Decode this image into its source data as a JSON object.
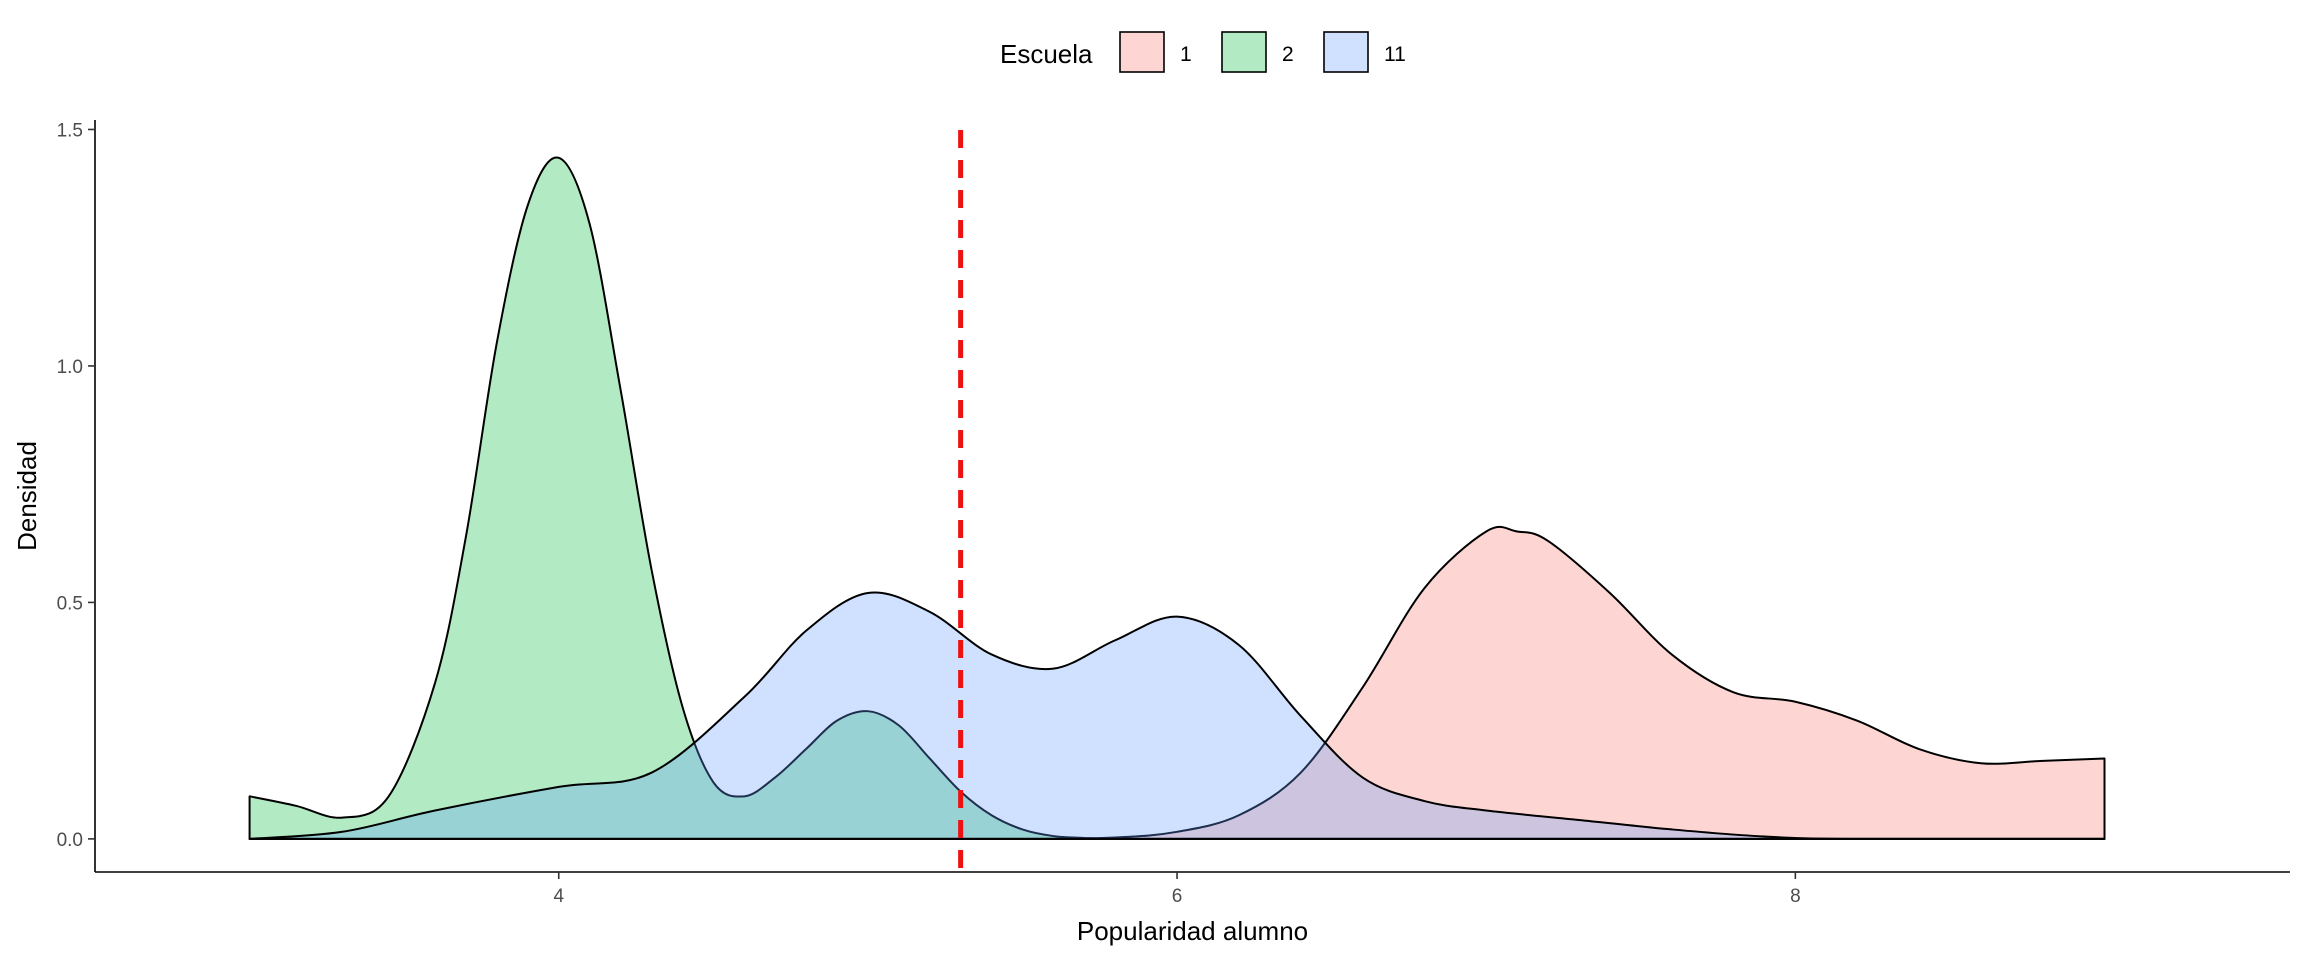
{
  "chart_data": {
    "type": "area",
    "subtype": "density",
    "title": "",
    "xlabel": "Popularidad alumno",
    "ylabel": "Densidad",
    "xlim": [
      2.5,
      9.6
    ],
    "ylim": [
      -0.07,
      1.52
    ],
    "x_ticks": [
      4,
      6,
      8
    ],
    "y_ticks": [
      0.0,
      0.5,
      1.0,
      1.5
    ],
    "y_tick_labels": [
      "0.0",
      "0.5",
      "1.0",
      "1.5"
    ],
    "grid": false,
    "legend": {
      "title": "Escuela",
      "position": "top"
    },
    "reference_line": {
      "x": 5.3,
      "style": "dashed",
      "color": "#ee1111"
    },
    "series": [
      {
        "name": "1",
        "fill": "#f8766d",
        "opacity": 0.3,
        "x": [
          3.0,
          4.0,
          5.0,
          5.5,
          5.8,
          6.0,
          6.2,
          6.4,
          6.6,
          6.8,
          7.0,
          7.1,
          7.2,
          7.4,
          7.6,
          7.8,
          8.0,
          8.2,
          8.4,
          8.6,
          8.8,
          9.0
        ],
        "y": [
          0.0,
          0.0,
          0.0,
          0.0,
          0.003,
          0.015,
          0.05,
          0.14,
          0.32,
          0.53,
          0.65,
          0.65,
          0.63,
          0.52,
          0.39,
          0.31,
          0.29,
          0.25,
          0.19,
          0.16,
          0.165,
          0.17
        ]
      },
      {
        "name": "2",
        "fill": "#00ba38",
        "opacity": 0.3,
        "x": [
          3.0,
          3.15,
          3.3,
          3.45,
          3.6,
          3.7,
          3.8,
          3.9,
          4.0,
          4.1,
          4.2,
          4.3,
          4.4,
          4.5,
          4.6,
          4.7,
          4.8,
          4.9,
          5.0,
          5.1,
          5.2,
          5.3,
          5.4,
          5.5,
          5.6,
          5.7,
          5.8,
          6.0,
          6.5,
          7.0,
          7.5,
          8.0,
          9.0
        ],
        "y": [
          0.09,
          0.07,
          0.045,
          0.09,
          0.33,
          0.64,
          1.05,
          1.34,
          1.44,
          1.3,
          0.95,
          0.57,
          0.28,
          0.12,
          0.09,
          0.13,
          0.19,
          0.25,
          0.27,
          0.24,
          0.17,
          0.1,
          0.05,
          0.02,
          0.006,
          0.002,
          0.0,
          0.0,
          0.0,
          0.0,
          0.0,
          0.0,
          0.0
        ]
      },
      {
        "name": "11",
        "fill": "#619cff",
        "opacity": 0.3,
        "x": [
          3.0,
          3.3,
          3.6,
          4.0,
          4.3,
          4.6,
          4.8,
          5.0,
          5.2,
          5.4,
          5.6,
          5.8,
          6.0,
          6.2,
          6.4,
          6.6,
          6.8,
          7.0,
          7.3,
          7.6,
          7.9,
          8.2,
          9.0
        ],
        "y": [
          0.0,
          0.015,
          0.06,
          0.11,
          0.14,
          0.3,
          0.44,
          0.52,
          0.48,
          0.39,
          0.36,
          0.42,
          0.47,
          0.41,
          0.26,
          0.13,
          0.08,
          0.06,
          0.04,
          0.02,
          0.005,
          0.0,
          0.0
        ]
      }
    ]
  }
}
